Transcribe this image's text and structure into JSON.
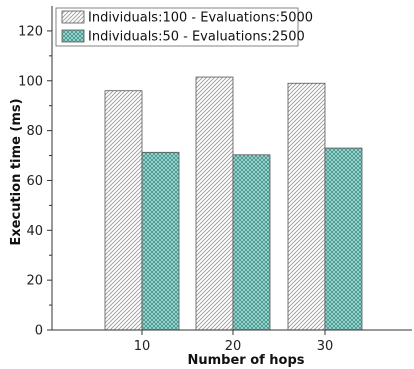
{
  "chart_data": {
    "type": "bar",
    "categories": [
      "10",
      "20",
      "30"
    ],
    "xlabel": "Number of hops",
    "ylabel": "Execution time (ms)",
    "ylim": [
      0,
      130
    ],
    "yticks": [
      0,
      20,
      40,
      60,
      80,
      100,
      120
    ],
    "grid": false,
    "legend_position": "top-left",
    "series": [
      {
        "name": "Individuals:100 - Evaluations:5000",
        "values": [
          96,
          101.5,
          99
        ],
        "fill": "#ffffff",
        "hatch": "diagonal",
        "hatch_color": "#9a9a9a"
      },
      {
        "name": "Individuals:50 - Evaluations:2500",
        "values": [
          71.3,
          70.3,
          73
        ],
        "fill": "#9fe1d8",
        "hatch": "crosshatch",
        "hatch_color": "#4a8f87"
      }
    ]
  }
}
